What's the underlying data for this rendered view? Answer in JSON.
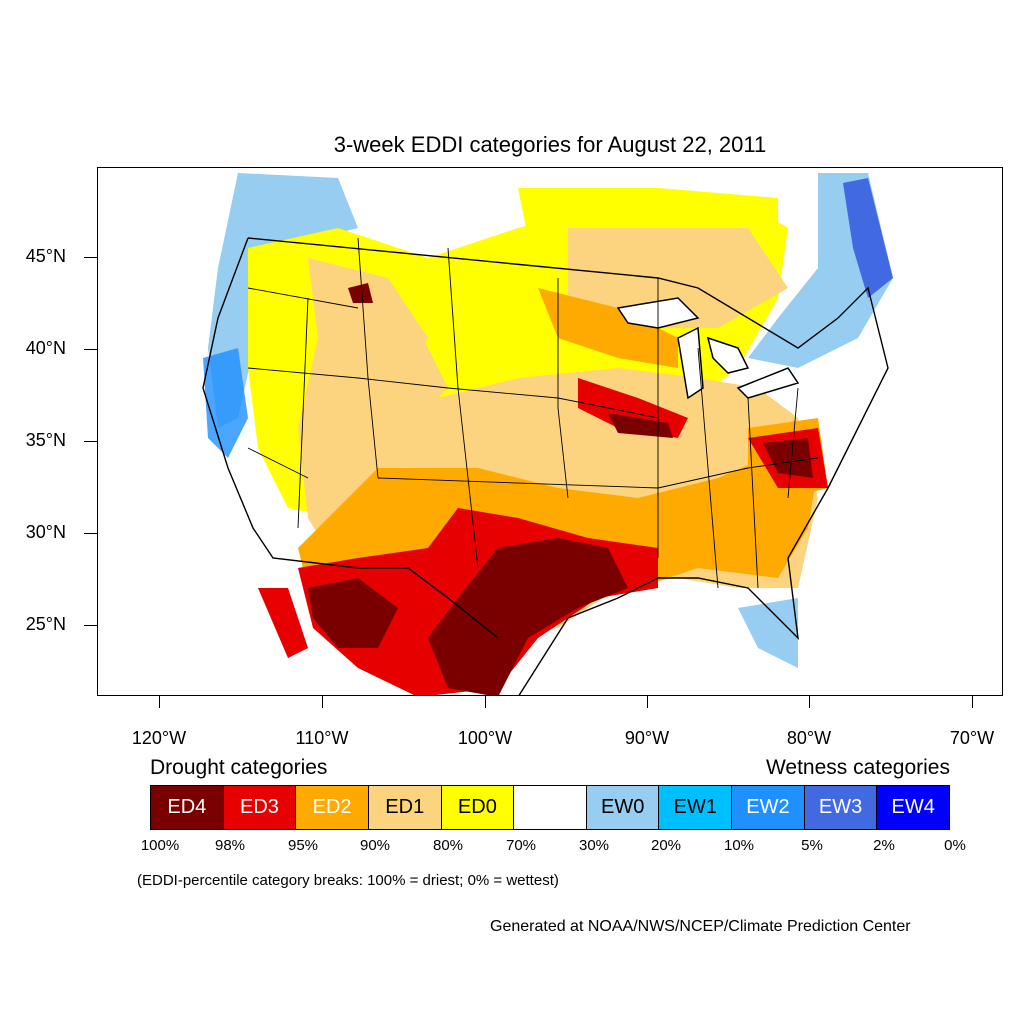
{
  "title": "3-week EDDI categories for August 22, 2011",
  "latitude_labels": [
    "45°N",
    "40°N",
    "35°N",
    "30°N",
    "25°N"
  ],
  "longitude_labels": [
    "120°W",
    "110°W",
    "100°W",
    "90°W",
    "80°W",
    "70°W"
  ],
  "legend": {
    "drought_heading": "Drought categories",
    "wetness_heading": "Wetness categories",
    "categories": [
      {
        "label": "ED4",
        "color": "#7a0000",
        "text_color": "#ffffff"
      },
      {
        "label": "ED3",
        "color": "#e60000",
        "text_color": "#ffffff"
      },
      {
        "label": "ED2",
        "color": "#ffaa00",
        "text_color": "#ffffff"
      },
      {
        "label": "ED1",
        "color": "#fcd37f",
        "text_color": "#000000"
      },
      {
        "label": "ED0",
        "color": "#ffff00",
        "text_color": "#000000"
      },
      {
        "label": "",
        "color": "#ffffff",
        "text_color": "#000000"
      },
      {
        "label": "EW0",
        "color": "#96cdf0",
        "text_color": "#000000"
      },
      {
        "label": "EW1",
        "color": "#00bfff",
        "text_color": "#000000"
      },
      {
        "label": "EW2",
        "color": "#1e90ff",
        "text_color": "#ffffff"
      },
      {
        "label": "EW3",
        "color": "#4169e1",
        "text_color": "#ffffff"
      },
      {
        "label": "EW4",
        "color": "#0000ff",
        "text_color": "#ffffff"
      }
    ],
    "percent_breaks": [
      "100%",
      "98%",
      "95%",
      "90%",
      "80%",
      "70%",
      "30%",
      "20%",
      "10%",
      "5%",
      "2%",
      "0%"
    ]
  },
  "note": "(EDDI-percentile category breaks: 100% = driest; 0% = wettest)",
  "credit": "Generated at NOAA/NWS/NCEP/Climate Prediction Center"
}
